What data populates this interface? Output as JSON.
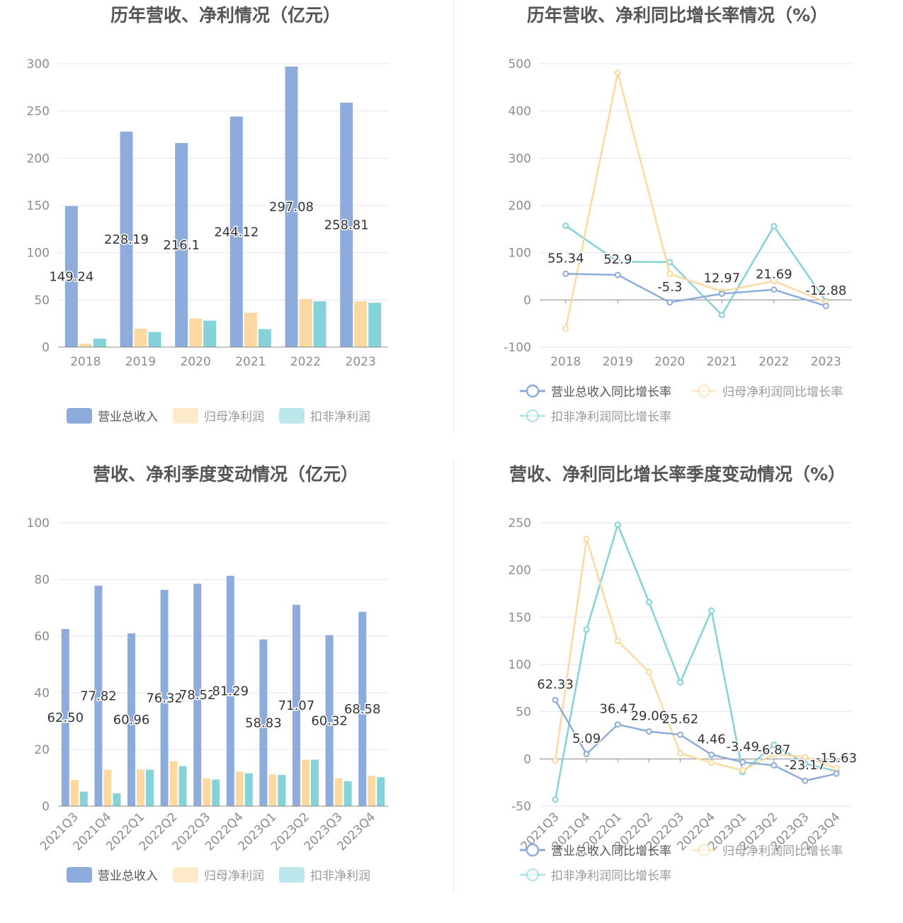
{
  "colors": {
    "revenue": "#8eacdb",
    "parent_profit": "#fcd9a0",
    "non_recurring_profit": "#85d3d8"
  },
  "panels": {
    "annual_amount": {
      "title": "历年营收、净利情况（亿元）"
    },
    "annual_growth": {
      "title": "历年营收、净利同比增长率情况（%）"
    },
    "quarter_amount": {
      "title": "营收、净利季度变动情况（亿元）"
    },
    "quarter_growth": {
      "title": "营收、净利同比增长率季度变动情况（%）"
    }
  },
  "chart_data": [
    {
      "type": "bar",
      "title": "历年营收、净利情况（亿元）",
      "categories": [
        "2018",
        "2019",
        "2020",
        "2021",
        "2022",
        "2023"
      ],
      "ylim": [
        0,
        300
      ],
      "yticks": [
        0,
        50,
        100,
        150,
        200,
        250,
        300
      ],
      "grid": true,
      "legend": "bottom",
      "series": [
        {
          "name": "营业总收入",
          "values": [
            149.24,
            228.19,
            216.1,
            244.12,
            297.08,
            258.81
          ],
          "labels": [
            "149.24",
            "228.19",
            "216.1",
            "244.12",
            "297.08",
            "258.81"
          ]
        },
        {
          "name": "归母净利润",
          "values": [
            3.5,
            19.5,
            30.3,
            36.4,
            50.9,
            48.4
          ]
        },
        {
          "name": "扣非净利润",
          "values": [
            9,
            16,
            28,
            19,
            48.5,
            47
          ]
        }
      ]
    },
    {
      "type": "line",
      "title": "历年营收、净利同比增长率情况（%）",
      "categories": [
        "2018",
        "2019",
        "2020",
        "2021",
        "2022",
        "2023"
      ],
      "ylim": [
        -100,
        500
      ],
      "yticks": [
        -100,
        0,
        100,
        200,
        300,
        400,
        500
      ],
      "grid": true,
      "legend": "bottom",
      "series": [
        {
          "name": "营业总收入同比增长率",
          "values": [
            55.34,
            52.9,
            -5.3,
            12.97,
            21.69,
            -12.88
          ],
          "labels": [
            "55.34",
            "52.9",
            "-5.3",
            "12.97",
            "21.69",
            "-12.88"
          ]
        },
        {
          "name": "归母净利润同比增长率",
          "values": [
            -61,
            481,
            55,
            18,
            40,
            -5
          ]
        },
        {
          "name": "扣非净利润同比增长率",
          "values": [
            157,
            81,
            80,
            -32,
            156,
            -3
          ]
        }
      ]
    },
    {
      "type": "bar",
      "title": "营收、净利季度变动情况（亿元）",
      "categories": [
        "2021Q3",
        "2021Q4",
        "2022Q1",
        "2022Q2",
        "2022Q3",
        "2022Q4",
        "2023Q1",
        "2023Q2",
        "2023Q3",
        "2023Q4"
      ],
      "ylim": [
        0,
        100
      ],
      "yticks": [
        0,
        20,
        40,
        60,
        80,
        100
      ],
      "grid": true,
      "legend": "bottom",
      "series": [
        {
          "name": "营业总收入",
          "values": [
            62.5,
            77.82,
            60.96,
            76.32,
            78.52,
            81.29,
            58.83,
            71.07,
            60.32,
            68.58
          ],
          "labels": [
            "62.50",
            "77.82",
            "60.96",
            "76.32",
            "78.52",
            "81.29",
            "58.83",
            "71.07",
            "60.32",
            "68.58"
          ]
        },
        {
          "name": "归母净利润",
          "values": [
            9.2,
            12.8,
            12.9,
            15.9,
            9.8,
            12.2,
            11.2,
            16.4,
            9.8,
            10.7
          ]
        },
        {
          "name": "扣非净利润",
          "values": [
            5.1,
            4.5,
            12.9,
            14.1,
            9.4,
            11.6,
            11.0,
            16.4,
            8.8,
            10.2
          ]
        }
      ]
    },
    {
      "type": "line",
      "title": "营收、净利同比增长率季度变动情况（%）",
      "categories": [
        "2021Q3",
        "2021Q4",
        "2022Q1",
        "2022Q2",
        "2022Q3",
        "2022Q4",
        "2023Q1",
        "2023Q2",
        "2023Q3",
        "2023Q4"
      ],
      "ylim": [
        -50,
        250
      ],
      "yticks": [
        -50,
        0,
        50,
        100,
        150,
        200,
        250
      ],
      "grid": true,
      "legend": "bottom",
      "series": [
        {
          "name": "营业总收入同比增长率",
          "values": [
            62.33,
            5.09,
            36.47,
            29.06,
            25.62,
            4.46,
            -3.49,
            -6.87,
            -23.17,
            -15.63
          ],
          "labels": [
            "62.33",
            "5.09",
            "36.47",
            "29.06",
            "25.62",
            "4.46",
            "-3.49",
            "-6.87",
            "-23.17",
            "-15.63"
          ]
        },
        {
          "name": "归母净利润同比增长率",
          "values": [
            -2,
            233,
            125,
            92,
            6,
            -4,
            -12,
            5,
            2,
            -10
          ]
        },
        {
          "name": "扣非净利润同比增长率",
          "values": [
            -43,
            137,
            248,
            166,
            81,
            157,
            -14,
            15,
            -5,
            -13
          ]
        }
      ]
    }
  ]
}
